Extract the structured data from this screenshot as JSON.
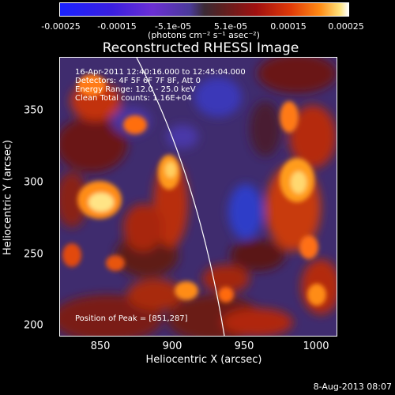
{
  "colorbar": {
    "ticks": [
      "-0.00025",
      "-0.00015",
      "-5.1e-05",
      "5.1e-05",
      "0.00015",
      "0.00025"
    ],
    "units": "(photons cm⁻² s⁻¹ asec⁻²)"
  },
  "title": "Reconstructed RHESSI Image",
  "overlay": {
    "line1": "16-Apr-2011 12:40:16.000 to 12:45:04.000",
    "line2": "Detectors: 4F 5F 6F 7F 8F, Att 0",
    "line3": "Energy Range: 12.0 - 25.0 keV",
    "line4": "Clean    Total counts: 1.16E+04",
    "peak": "Position of Peak = [851,287]"
  },
  "axes": {
    "xlabel": "Heliocentric X (arcsec)",
    "ylabel": "Heliocentric Y (arcsec)",
    "xticks": [
      "850",
      "900",
      "950",
      "1000"
    ],
    "yticks": [
      "350",
      "300",
      "250",
      "200"
    ]
  },
  "footer": "8-Aug-2013 08:07"
}
